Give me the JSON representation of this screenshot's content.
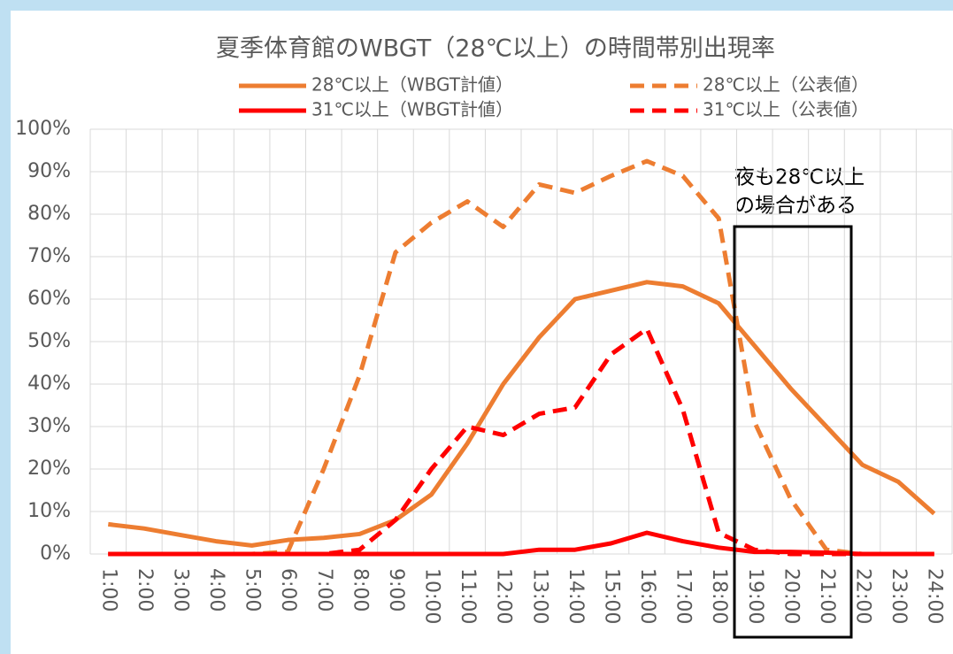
{
  "chart_data": {
    "type": "line",
    "title": "夏季体育館のWBGT（28℃以上）の時間帯別出現率",
    "annotation": [
      "夜も28℃以上",
      "の場合がある"
    ],
    "categories": [
      "1:00",
      "2:00",
      "3:00",
      "4:00",
      "5:00",
      "6:00",
      "7:00",
      "8:00",
      "9:00",
      "10:00",
      "11:00",
      "12:00",
      "13:00",
      "14:00",
      "15:00",
      "16:00",
      "17:00",
      "18:00",
      "19:00",
      "20:00",
      "21:00",
      "22:00",
      "23:00",
      "24:00"
    ],
    "series": [
      {
        "name": "28℃以上（WBGT計値）",
        "color": "#ED7D31",
        "dash": false,
        "values": [
          7,
          6,
          4.5,
          3,
          2,
          3.3,
          3.8,
          4.7,
          8,
          14,
          26,
          40,
          51,
          60,
          62,
          64,
          63,
          59,
          49,
          39,
          30,
          21,
          17,
          9.5
        ]
      },
      {
        "name": "28℃以上（公表値）",
        "color": "#ED7D31",
        "dash": true,
        "values": [
          0,
          0,
          0,
          0,
          0,
          0.5,
          20,
          42,
          71,
          78,
          83,
          77,
          87,
          85,
          89,
          92.5,
          89,
          79,
          31,
          13,
          1,
          0,
          0,
          0
        ]
      },
      {
        "name": "31℃以上（WBGT計値）",
        "color": "#FF0000",
        "dash": false,
        "values": [
          0,
          0,
          0,
          0,
          0,
          0,
          0,
          0,
          0,
          0,
          0,
          0,
          1,
          1,
          2.5,
          5,
          3,
          1.5,
          0.5,
          0.5,
          0.3,
          0,
          0,
          0
        ]
      },
      {
        "name": "31℃以上（公表値）",
        "color": "#FF0000",
        "dash": true,
        "values": [
          0,
          0,
          0,
          0,
          0,
          0,
          0,
          1,
          8,
          20,
          30,
          28,
          33,
          34.5,
          47,
          53,
          34,
          5,
          1,
          0,
          0,
          0,
          0,
          0
        ]
      }
    ],
    "ylim": [
      0,
      100
    ],
    "yticks": [
      {
        "value": 0,
        "label": "0%"
      },
      {
        "value": 10,
        "label": "10%"
      },
      {
        "value": 20,
        "label": "20%"
      },
      {
        "value": 30,
        "label": "30%"
      },
      {
        "value": 40,
        "label": "40%"
      },
      {
        "value": 50,
        "label": "50%"
      },
      {
        "value": 60,
        "label": "60%"
      },
      {
        "value": 70,
        "label": "70%"
      },
      {
        "value": 80,
        "label": "80%"
      },
      {
        "value": 90,
        "label": "90%"
      },
      {
        "value": 100,
        "label": "100%"
      }
    ],
    "grid": true
  }
}
